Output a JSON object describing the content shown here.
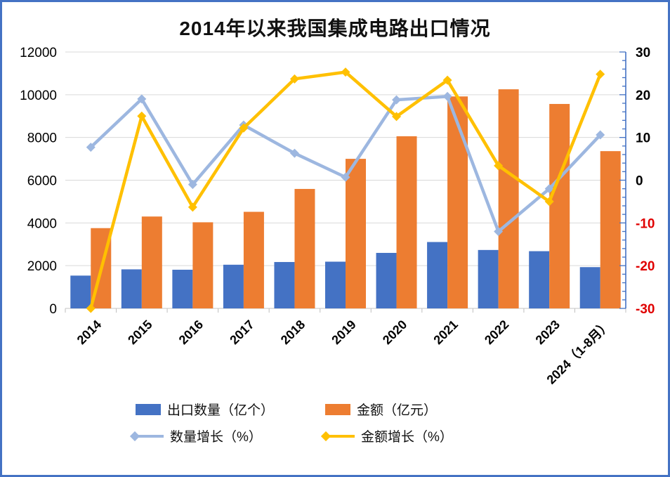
{
  "chart_data": {
    "type": "bar+line",
    "title": "2014年以来我国集成电路出口情况",
    "categories": [
      "2014",
      "2015",
      "2016",
      "2017",
      "2018",
      "2019",
      "2020",
      "2021",
      "2022",
      "2023",
      "2024（1-8月）"
    ],
    "series": [
      {
        "name": "出口数量（亿个）",
        "type": "bar",
        "axis": "left",
        "color": "#4472C4",
        "values": [
          1535,
          1827,
          1810,
          2044,
          2171,
          2187,
          2598,
          3107,
          2734,
          2678,
          1932
        ]
      },
      {
        "name": "金额（亿元）",
        "type": "bar",
        "axis": "left",
        "color": "#ED7D31",
        "values": [
          3757,
          4300,
          4030,
          4520,
          5591,
          7000,
          8056,
          9920,
          10254,
          9568,
          7360
        ]
      },
      {
        "name": "数量增长（%）",
        "type": "line",
        "axis": "right",
        "color": "#9DB7E0",
        "values": [
          7.7,
          19.0,
          -1.0,
          12.9,
          6.3,
          0.7,
          18.8,
          19.6,
          -12.0,
          -2.0,
          10.6
        ]
      },
      {
        "name": "金额增长（%）",
        "type": "line",
        "axis": "right",
        "color": "#FFC000",
        "values": [
          -30,
          15.0,
          -6.3,
          12.2,
          23.7,
          25.3,
          14.9,
          23.4,
          3.4,
          -5.0,
          24.8
        ]
      }
    ],
    "left_axis": {
      "min": 0,
      "max": 12000,
      "step": 2000,
      "tick_labels": [
        "0",
        "2000",
        "4000",
        "6000",
        "8000",
        "10000",
        "12000"
      ]
    },
    "right_axis": {
      "min": -30,
      "max": 30,
      "step": 10,
      "minor_step": 2,
      "tick_labels": [
        "30",
        "20",
        "10",
        "0",
        "-10",
        "-20",
        "-30"
      ],
      "axis_color": "#4472C4",
      "positive_label_color": "#000000",
      "negative_label_color": "#E00000"
    },
    "gridline_color": "#D9D9D9",
    "baseline_color": "#C6C6C6",
    "x_tick_color": "#BFBFBF",
    "legend_position": "bottom",
    "frame_border_color": "#4472C4"
  }
}
